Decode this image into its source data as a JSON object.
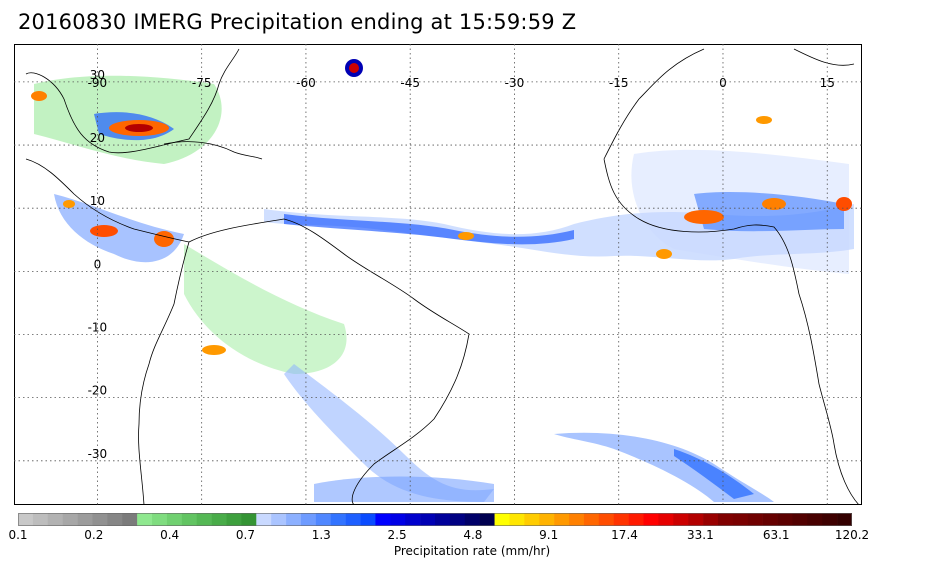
{
  "title": "20160830 IMERG Precipitation ending at 15:59:59 Z",
  "map": {
    "lon_labels": [
      "-90",
      "-75",
      "-60",
      "-45",
      "-30",
      "-15",
      "0",
      "15"
    ],
    "lat_labels": [
      "30",
      "20",
      "10",
      "0",
      "-10",
      "-20",
      "-30"
    ],
    "lon_values": [
      -90,
      -75,
      -60,
      -45,
      -30,
      -15,
      0,
      15
    ],
    "lat_values": [
      30,
      20,
      10,
      0,
      -10,
      -20,
      -30
    ],
    "extent": {
      "lon_min": -102,
      "lon_max": 20,
      "lat_min": -37,
      "lat_max": 36
    },
    "grid": "dotted"
  },
  "colorbar": {
    "title": "Precipitation rate (mm/hr)",
    "tick_labels": [
      "0.1",
      "0.2",
      "0.4",
      "0.7",
      "1.3",
      "2.5",
      "4.8",
      "9.1",
      "17.4",
      "33.1",
      "63.1",
      "120.2"
    ],
    "colors": [
      "#c8c8c8",
      "#bdbdbd",
      "#b2b2b2",
      "#a7a7a7",
      "#9c9c9c",
      "#919191",
      "#868686",
      "#7b7b7b",
      "#8fe88f",
      "#7fdc7f",
      "#70d070",
      "#62c462",
      "#55b855",
      "#49ac49",
      "#3ea03e",
      "#349434",
      "#c9d9ff",
      "#aac4ff",
      "#8cb0ff",
      "#6e9bff",
      "#5087ff",
      "#3273ff",
      "#1e5fff",
      "#0a4bff",
      "#0000ff",
      "#0000e6",
      "#0000cd",
      "#0000b4",
      "#00009b",
      "#000082",
      "#000069",
      "#000050",
      "#ffff00",
      "#ffe600",
      "#ffcc00",
      "#ffb300",
      "#ff9900",
      "#ff8000",
      "#ff6600",
      "#ff4d00",
      "#ff3300",
      "#ff1a00",
      "#ff0000",
      "#e60000",
      "#cc0000",
      "#b30000",
      "#990000",
      "#800000",
      "#7a0000",
      "#700000",
      "#660000",
      "#5c0000",
      "#520000",
      "#480000",
      "#3e0000",
      "#340000"
    ]
  }
}
